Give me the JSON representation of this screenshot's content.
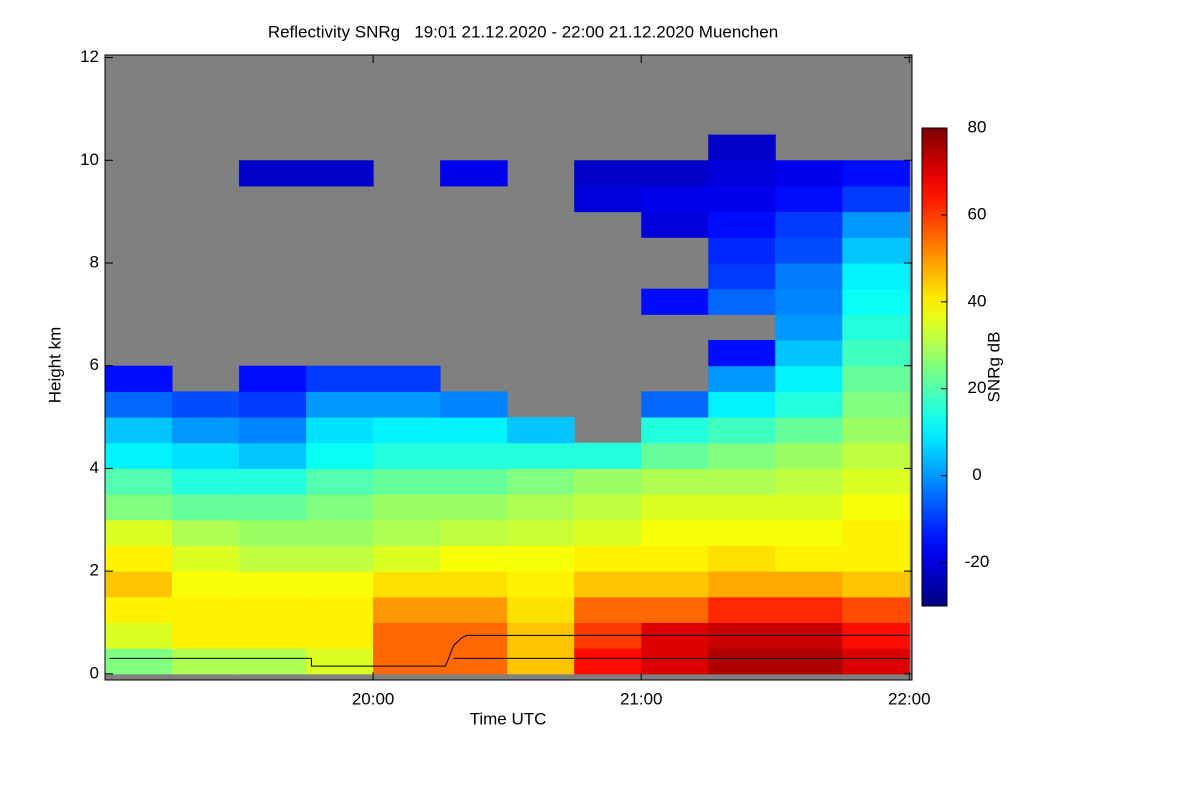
{
  "chart_data": {
    "type": "heatmap",
    "title": "Reflectivity SNRg   19:01 21.12.2020 - 22:00 21.12.2020 Muenchen",
    "x_label": "Time UTC",
    "y_label": "Height km",
    "colorbar_label": "SNRg dB",
    "xlim": [
      19.0,
      22.01
    ],
    "ylim": [
      -0.12,
      12.05
    ],
    "xticks": [
      {
        "value": 20,
        "label": "20:00"
      },
      {
        "value": 21,
        "label": "21:00"
      },
      {
        "value": 22,
        "label": "22:00"
      }
    ],
    "yticks": [
      0,
      2,
      4,
      6,
      8,
      10,
      12
    ],
    "zlim": [
      -30,
      80
    ],
    "zticks": [
      -20,
      0,
      20,
      40,
      60,
      80
    ],
    "no_signal_color": "#808080",
    "colormap": "jet",
    "x": [
      19.125,
      19.375,
      19.625,
      19.875,
      20.125,
      20.375,
      20.625,
      20.875,
      21.125,
      21.375,
      21.625,
      21.875
    ],
    "y": [
      0.25,
      0.75,
      1.25,
      1.75,
      2.25,
      2.75,
      3.25,
      3.75,
      4.25,
      4.75,
      5.25,
      5.75,
      6.25,
      6.75,
      7.25,
      7.75,
      8.25,
      8.75,
      9.25,
      9.75,
      10.25
    ],
    "z": [
      [
        25,
        30,
        30,
        35,
        55,
        55,
        45,
        65,
        70,
        75,
        75,
        70
      ],
      [
        35,
        40,
        40,
        40,
        55,
        55,
        45,
        60,
        70,
        72,
        72,
        65
      ],
      [
        40,
        40,
        40,
        40,
        50,
        50,
        42,
        55,
        55,
        62,
        62,
        58
      ],
      [
        45,
        38,
        38,
        38,
        42,
        42,
        40,
        45,
        45,
        48,
        48,
        45
      ],
      [
        40,
        35,
        32,
        32,
        35,
        38,
        38,
        40,
        40,
        42,
        40,
        40
      ],
      [
        35,
        30,
        28,
        28,
        30,
        32,
        33,
        35,
        38,
        38,
        38,
        40
      ],
      [
        25,
        22,
        22,
        25,
        28,
        28,
        30,
        32,
        35,
        35,
        35,
        38
      ],
      [
        20,
        15,
        15,
        20,
        22,
        22,
        25,
        28,
        30,
        30,
        32,
        35
      ],
      [
        10,
        8,
        5,
        12,
        15,
        15,
        15,
        15,
        22,
        25,
        28,
        32
      ],
      [
        5,
        0,
        -2,
        8,
        10,
        10,
        5,
        null,
        15,
        18,
        22,
        28
      ],
      [
        -5,
        -8,
        -10,
        0,
        0,
        -2,
        null,
        null,
        -5,
        10,
        15,
        25
      ],
      [
        -15,
        null,
        -15,
        -10,
        -10,
        null,
        null,
        null,
        null,
        0,
        10,
        22
      ],
      [
        null,
        null,
        null,
        null,
        null,
        null,
        null,
        null,
        null,
        -15,
        5,
        18
      ],
      [
        null,
        null,
        null,
        null,
        null,
        null,
        null,
        null,
        null,
        null,
        0,
        15
      ],
      [
        null,
        null,
        null,
        null,
        null,
        null,
        null,
        null,
        -15,
        -5,
        -2,
        12
      ],
      [
        null,
        null,
        null,
        null,
        null,
        null,
        null,
        null,
        null,
        -10,
        -3,
        10
      ],
      [
        null,
        null,
        null,
        null,
        null,
        null,
        null,
        null,
        null,
        -12,
        -8,
        5
      ],
      [
        null,
        null,
        null,
        null,
        null,
        null,
        null,
        null,
        -20,
        -15,
        -10,
        0
      ],
      [
        null,
        null,
        null,
        null,
        null,
        null,
        null,
        -20,
        -18,
        -18,
        -15,
        -10
      ],
      [
        null,
        null,
        -22,
        -22,
        null,
        -18,
        null,
        -22,
        -22,
        -20,
        -18,
        -15
      ],
      [
        null,
        null,
        null,
        null,
        null,
        null,
        null,
        null,
        null,
        -22,
        null,
        null
      ]
    ],
    "lines": [
      {
        "color": "#000000",
        "x": [
          19.0167,
          19.77,
          19.77,
          20.27,
          20.3,
          20.33,
          20.35,
          22.0
        ],
        "y": [
          0.3,
          0.3,
          0.15,
          0.15,
          0.55,
          0.7,
          0.75,
          0.75
        ]
      },
      {
        "color": "#000000",
        "x": [
          20.3,
          22.0
        ],
        "y": [
          0.3,
          0.3
        ]
      }
    ]
  }
}
